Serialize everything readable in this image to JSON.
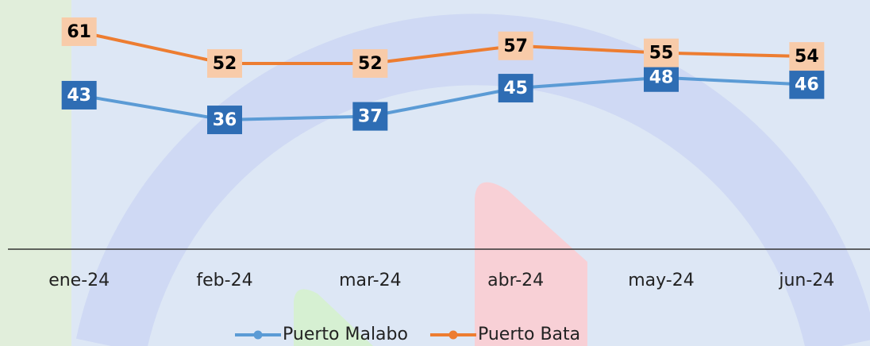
{
  "chart_data": {
    "type": "line",
    "categories": [
      "ene-24",
      "feb-24",
      "mar-24",
      "abr-24",
      "may-24",
      "jun-24"
    ],
    "series": [
      {
        "name": "Puerto Malabo",
        "color": "#5b9bd5",
        "label_color": "#2e6db4",
        "values": [
          43,
          36,
          37,
          45,
          48,
          46
        ]
      },
      {
        "name": "Puerto Bata",
        "color": "#ed7d31",
        "label_color": "#f8cba9",
        "values": [
          61,
          52,
          52,
          57,
          55,
          54
        ]
      }
    ],
    "ylim": [
      0,
      70
    ],
    "legend": "bottom"
  }
}
